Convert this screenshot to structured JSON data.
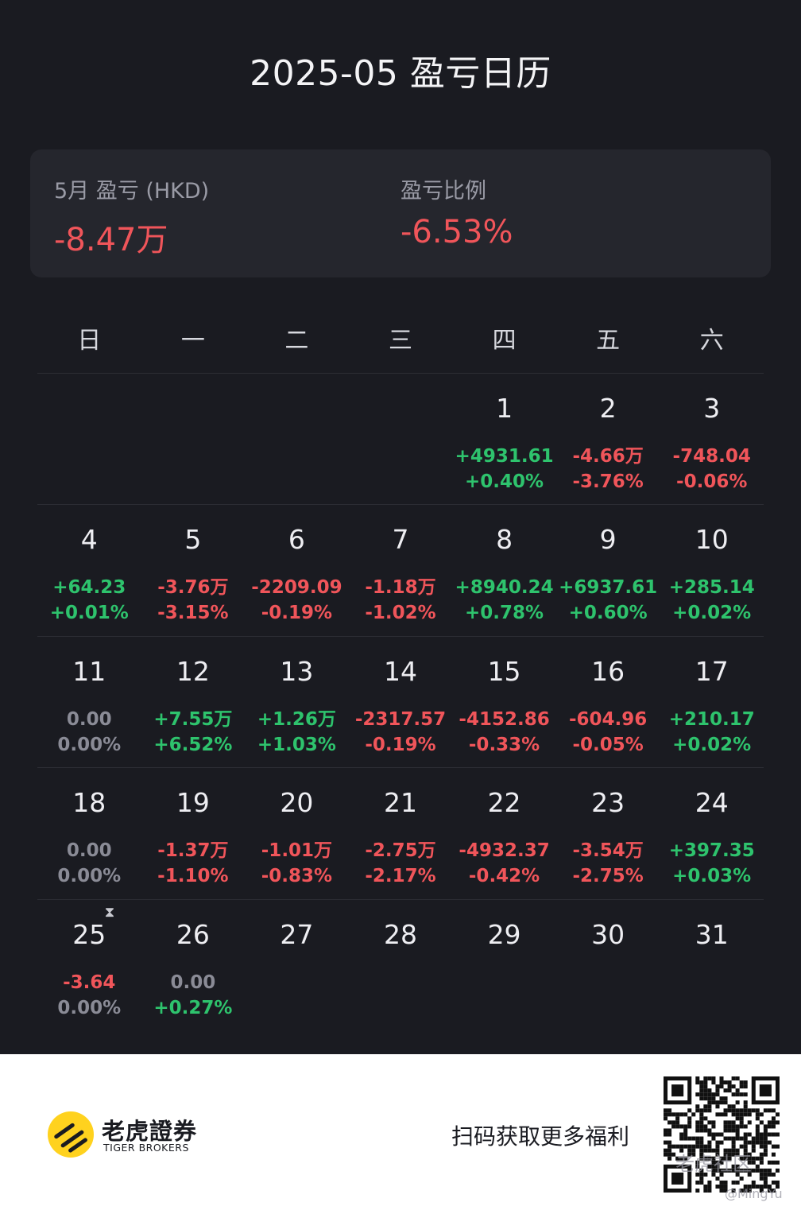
{
  "header": {
    "title": "2025-05 盈亏日历"
  },
  "summary": {
    "pnl_label": "5月 盈亏 (HKD)",
    "pnl_value": "-8.47万",
    "ratio_label": "盈亏比例",
    "ratio_value": "-6.53%"
  },
  "weekdays": [
    "日",
    "一",
    "二",
    "三",
    "四",
    "五",
    "六"
  ],
  "weeks": [
    [
      {
        "day": "",
        "amount": "",
        "pct": "",
        "amount_color": "",
        "pct_color": ""
      },
      {
        "day": "",
        "amount": "",
        "pct": "",
        "amount_color": "",
        "pct_color": ""
      },
      {
        "day": "",
        "amount": "",
        "pct": "",
        "amount_color": "",
        "pct_color": ""
      },
      {
        "day": "",
        "amount": "",
        "pct": "",
        "amount_color": "",
        "pct_color": ""
      },
      {
        "day": "1",
        "amount": "+4931.61",
        "pct": "+0.40%",
        "amount_color": "pos",
        "pct_color": "pos"
      },
      {
        "day": "2",
        "amount": "-4.66万",
        "pct": "-3.76%",
        "amount_color": "neg",
        "pct_color": "neg"
      },
      {
        "day": "3",
        "amount": "-748.04",
        "pct": "-0.06%",
        "amount_color": "neg",
        "pct_color": "neg"
      }
    ],
    [
      {
        "day": "4",
        "amount": "+64.23",
        "pct": "+0.01%",
        "amount_color": "pos",
        "pct_color": "pos"
      },
      {
        "day": "5",
        "amount": "-3.76万",
        "pct": "-3.15%",
        "amount_color": "neg",
        "pct_color": "neg"
      },
      {
        "day": "6",
        "amount": "-2209.09",
        "pct": "-0.19%",
        "amount_color": "neg",
        "pct_color": "neg"
      },
      {
        "day": "7",
        "amount": "-1.18万",
        "pct": "-1.02%",
        "amount_color": "neg",
        "pct_color": "neg"
      },
      {
        "day": "8",
        "amount": "+8940.24",
        "pct": "+0.78%",
        "amount_color": "pos",
        "pct_color": "pos"
      },
      {
        "day": "9",
        "amount": "+6937.61",
        "pct": "+0.60%",
        "amount_color": "pos",
        "pct_color": "pos"
      },
      {
        "day": "10",
        "amount": "+285.14",
        "pct": "+0.02%",
        "amount_color": "pos",
        "pct_color": "pos"
      }
    ],
    [
      {
        "day": "11",
        "amount": "0.00",
        "pct": "0.00%",
        "amount_color": "zero",
        "pct_color": "zero"
      },
      {
        "day": "12",
        "amount": "+7.55万",
        "pct": "+6.52%",
        "amount_color": "pos",
        "pct_color": "pos"
      },
      {
        "day": "13",
        "amount": "+1.26万",
        "pct": "+1.03%",
        "amount_color": "pos",
        "pct_color": "pos"
      },
      {
        "day": "14",
        "amount": "-2317.57",
        "pct": "-0.19%",
        "amount_color": "neg",
        "pct_color": "neg"
      },
      {
        "day": "15",
        "amount": "-4152.86",
        "pct": "-0.33%",
        "amount_color": "neg",
        "pct_color": "neg"
      },
      {
        "day": "16",
        "amount": "-604.96",
        "pct": "-0.05%",
        "amount_color": "neg",
        "pct_color": "neg"
      },
      {
        "day": "17",
        "amount": "+210.17",
        "pct": "+0.02%",
        "amount_color": "pos",
        "pct_color": "pos"
      }
    ],
    [
      {
        "day": "18",
        "amount": "0.00",
        "pct": "0.00%",
        "amount_color": "zero",
        "pct_color": "zero"
      },
      {
        "day": "19",
        "amount": "-1.37万",
        "pct": "-1.10%",
        "amount_color": "neg",
        "pct_color": "neg"
      },
      {
        "day": "20",
        "amount": "-1.01万",
        "pct": "-0.83%",
        "amount_color": "neg",
        "pct_color": "neg"
      },
      {
        "day": "21",
        "amount": "-2.75万",
        "pct": "-2.17%",
        "amount_color": "neg",
        "pct_color": "neg"
      },
      {
        "day": "22",
        "amount": "-4932.37",
        "pct": "-0.42%",
        "amount_color": "neg",
        "pct_color": "neg"
      },
      {
        "day": "23",
        "amount": "-3.54万",
        "pct": "-2.75%",
        "amount_color": "neg",
        "pct_color": "neg"
      },
      {
        "day": "24",
        "amount": "+397.35",
        "pct": "+0.03%",
        "amount_color": "pos",
        "pct_color": "pos"
      }
    ],
    [
      {
        "day": "25",
        "amount": "-3.64",
        "pct": "0.00%",
        "amount_color": "neg",
        "pct_color": "zero"
      },
      {
        "day": "26",
        "amount": "0.00",
        "pct": "+0.27%",
        "amount_color": "zero",
        "pct_color": "pos",
        "icon": "hourglass-icon"
      },
      {
        "day": "27",
        "amount": "",
        "pct": "",
        "amount_color": "",
        "pct_color": ""
      },
      {
        "day": "28",
        "amount": "",
        "pct": "",
        "amount_color": "",
        "pct_color": ""
      },
      {
        "day": "29",
        "amount": "",
        "pct": "",
        "amount_color": "",
        "pct_color": ""
      },
      {
        "day": "30",
        "amount": "",
        "pct": "",
        "amount_color": "",
        "pct_color": ""
      },
      {
        "day": "31",
        "amount": "",
        "pct": "",
        "amount_color": "",
        "pct_color": ""
      }
    ]
  ],
  "colors": {
    "background": "#1a1b21",
    "card": "#25262d",
    "positive": "#2ec36d",
    "negative": "#f0555a",
    "zero": "#8a8b96",
    "logo_yellow": "#ffd21e"
  },
  "footer": {
    "brand_cn": "老虎證券",
    "brand_en": "TIGER BROKERS",
    "scan_text": "扫码获取更多福利",
    "qr_icon": "qr-code-icon",
    "watermark_cn": "老虎社区",
    "watermark_user": "@MingYu"
  }
}
